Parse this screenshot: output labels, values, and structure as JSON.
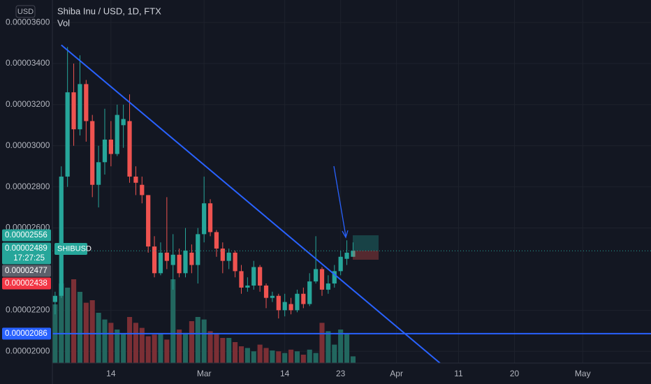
{
  "chart_data": {
    "type": "candlestick",
    "currency": "USD",
    "title": "Shiba Inu / USD, 1D, FTX",
    "volume_label": "Vol",
    "symbol": "SHIBUSD",
    "countdown": "17:27:25",
    "x": [
      "02-05",
      "02-06",
      "02-07",
      "02-08",
      "02-09",
      "02-10",
      "02-11",
      "02-12",
      "02-13",
      "02-14",
      "02-15",
      "02-16",
      "02-17",
      "02-18",
      "02-19",
      "02-20",
      "02-21",
      "02-22",
      "02-23",
      "02-24",
      "02-25",
      "02-26",
      "02-27",
      "02-28",
      "03-01",
      "03-02",
      "03-03",
      "03-04",
      "03-05",
      "03-06",
      "03-07",
      "03-08",
      "03-09",
      "03-10",
      "03-11",
      "03-12",
      "03-13",
      "03-14",
      "03-15",
      "03-16",
      "03-17",
      "03-18",
      "03-19",
      "03-20",
      "03-21",
      "03-22",
      "03-23",
      "03-24",
      "03-25"
    ],
    "open": [
      2.24e-05,
      2.27e-05,
      2.85e-05,
      3.26e-05,
      3.08e-05,
      3.3e-05,
      3.12e-05,
      2.81e-05,
      2.92e-05,
      3.03e-05,
      2.96e-05,
      3.1e-05,
      3.12e-05,
      2.85e-05,
      2.81e-05,
      2.76e-05,
      2.51e-05,
      2.38e-05,
      2.48e-05,
      2.42e-05,
      2.47e-05,
      2.38e-05,
      2.48e-05,
      2.42e-05,
      2.57e-05,
      2.72e-05,
      2.58e-05,
      2.5e-05,
      2.44e-05,
      2.48e-05,
      2.39e-05,
      2.31e-05,
      2.32e-05,
      2.41e-05,
      2.32e-05,
      2.26e-05,
      2.27e-05,
      2.2e-05,
      2.23e-05,
      2.2e-05,
      2.28e-05,
      2.23e-05,
      2.34e-05,
      2.4e-05,
      2.3e-05,
      2.33e-05,
      2.39e-05,
      2.45e-05,
      2.46e-05
    ],
    "high": [
      2.29e-05,
      2.9e-05,
      3.48e-05,
      3.4e-05,
      3.44e-05,
      3.32e-05,
      3.15e-05,
      3e-05,
      3.18e-05,
      3.12e-05,
      3.2e-05,
      3.2e-05,
      3.25e-05,
      2.9e-05,
      2.85e-05,
      2.76e-05,
      2.56e-05,
      2.53e-05,
      2.75e-05,
      2.57e-05,
      2.5e-05,
      2.6e-05,
      2.52e-05,
      2.6e-05,
      2.85e-05,
      2.74e-05,
      2.59e-05,
      2.53e-05,
      2.5e-05,
      2.49e-05,
      2.42e-05,
      2.36e-05,
      2.44e-05,
      2.42e-05,
      2.33e-05,
      2.29e-05,
      2.28e-05,
      2.28e-05,
      2.26e-05,
      2.3e-05,
      2.31e-05,
      2.38e-05,
      2.56e-05,
      2.41e-05,
      2.37e-05,
      2.42e-05,
      2.49e-05,
      2.54e-05,
      2.53e-05
    ],
    "low": [
      2.18e-05,
      2.26e-05,
      2.8e-05,
      3e-05,
      3.05e-05,
      3.02e-05,
      2.75e-05,
      2.7e-05,
      2.86e-05,
      2.9e-05,
      2.95e-05,
      2.99e-05,
      2.82e-05,
      2.76e-05,
      2.72e-05,
      2.48e-05,
      2.36e-05,
      2.37e-05,
      2.4e-05,
      2.3e-05,
      2.36e-05,
      2.36e-05,
      2.38e-05,
      2.33e-05,
      2.53e-05,
      2.56e-05,
      2.46e-05,
      2.38e-05,
      2.4e-05,
      2.36e-05,
      2.28e-05,
      2.29e-05,
      2.3e-05,
      2.29e-05,
      2.21e-05,
      2.24e-05,
      2.16e-05,
      2.17e-05,
      2.18e-05,
      2.19e-05,
      2.21e-05,
      2.22e-05,
      2.33e-05,
      2.27e-05,
      2.28e-05,
      2.31e-05,
      2.37e-05,
      2.42e-05,
      2.46e-05
    ],
    "close": [
      2.27e-05,
      2.85e-05,
      3.26e-05,
      3.08e-05,
      3.3e-05,
      3.12e-05,
      2.81e-05,
      2.92e-05,
      3.03e-05,
      2.96e-05,
      3.15e-05,
      3.13e-05,
      2.85e-05,
      2.82e-05,
      2.76e-05,
      2.51e-05,
      2.38e-05,
      2.48e-05,
      2.44e-05,
      2.47e-05,
      2.38e-05,
      2.49e-05,
      2.42e-05,
      2.57e-05,
      2.72e-05,
      2.58e-05,
      2.5e-05,
      2.44e-05,
      2.48e-05,
      2.39e-05,
      2.31e-05,
      2.32e-05,
      2.41e-05,
      2.32e-05,
      2.26e-05,
      2.27e-05,
      2.2e-05,
      2.24e-05,
      2.2e-05,
      2.28e-05,
      2.23e-05,
      2.34e-05,
      2.4e-05,
      2.3e-05,
      2.33e-05,
      2.39e-05,
      2.46e-05,
      2.48e-05,
      2.489e-05
    ],
    "volume": [
      70,
      95,
      90,
      100,
      85,
      72,
      75,
      60,
      52,
      48,
      40,
      35,
      55,
      48,
      42,
      32,
      34,
      35,
      28,
      100,
      40,
      36,
      50,
      55,
      52,
      38,
      35,
      30,
      30,
      25,
      20,
      18,
      14,
      22,
      18,
      15,
      14,
      12,
      16,
      14,
      10,
      16,
      12,
      48,
      38,
      22,
      40,
      35,
      8
    ],
    "up_color": "#26a69a",
    "down_color": "#ef5350",
    "volume_up_color": "#22675f",
    "volume_down_color": "#7b2f35",
    "ylim": [
      1.943e-05,
      3.709e-05
    ],
    "yticks": [
      {
        "value": 3.6e-05,
        "label": "0.00003600"
      },
      {
        "value": 3.4e-05,
        "label": "0.00003400"
      },
      {
        "value": 3.2e-05,
        "label": "0.00003200"
      },
      {
        "value": 3e-05,
        "label": "0.00003000"
      },
      {
        "value": 2.8e-05,
        "label": "0.00002800"
      },
      {
        "value": 2.6e-05,
        "label": "0.00002600"
      },
      {
        "value": 2.2e-05,
        "label": "0.00002200"
      },
      {
        "value": 2e-05,
        "label": "0.00002000"
      }
    ],
    "xlim": [
      "02-04",
      "05-12"
    ],
    "xticks": [
      {
        "value": "02-14",
        "label": "14"
      },
      {
        "value": "03-01",
        "label": "Mar"
      },
      {
        "value": "03-14",
        "label": "14"
      },
      {
        "value": "03-23",
        "label": "23"
      },
      {
        "value": "04-01",
        "label": "Apr"
      },
      {
        "value": "04-11",
        "label": "11"
      },
      {
        "value": "04-20",
        "label": "20"
      },
      {
        "value": "05-01",
        "label": "May"
      }
    ],
    "grid": true,
    "price_labels": [
      {
        "value": 2.556e-05,
        "color": "#26a69a"
      },
      {
        "value": 2.489e-05,
        "color": "#26a69a"
      },
      {
        "value": 2.477e-05,
        "color": "#5d606b"
      },
      {
        "value": 2.438e-05,
        "color": "#f23645"
      }
    ],
    "hline": {
      "value": 2.086e-05,
      "color": "#2962ff"
    },
    "trendline": {
      "points": [
        [
          "02-06",
          3.49e-05
        ],
        [
          "04-08",
          1.943e-05
        ]
      ],
      "color": "#2962ff"
    }
  }
}
